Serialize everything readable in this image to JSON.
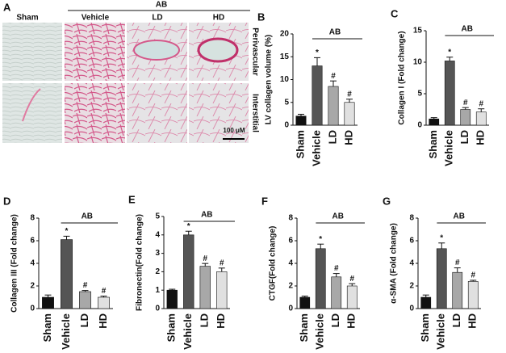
{
  "panel_a": {
    "label": "A",
    "group_label": "AB",
    "columns": [
      "Sham",
      "Vehicle",
      "LD",
      "HD"
    ],
    "rows": [
      "Perivascular",
      "Interstitial"
    ],
    "scale_bar": "100 μM"
  },
  "chart_data": [
    {
      "type": "bar",
      "panel": "B",
      "ylabel": "LV collagen volume (%)",
      "categories": [
        "Sham",
        "Vehicle",
        "LD",
        "HD"
      ],
      "values": [
        2,
        13,
        8.5,
        5
      ],
      "errors": [
        0.4,
        1.8,
        1.2,
        0.7
      ],
      "markers": [
        null,
        "*",
        "#",
        "#"
      ],
      "group_label": "AB",
      "colors": [
        "#111111",
        "#555555",
        "#a8a8a8",
        "#e0e0e0"
      ],
      "ylim": [
        0,
        20
      ],
      "yticks": [
        0,
        5,
        10,
        15,
        20
      ]
    },
    {
      "type": "bar",
      "panel": "C",
      "ylabel": "Collagen I (Fold change)",
      "categories": [
        "Sham",
        "Vehicle",
        "LD",
        "HD"
      ],
      "values": [
        1,
        10.2,
        2.5,
        2.1
      ],
      "errors": [
        0.2,
        0.6,
        0.3,
        0.5
      ],
      "markers": [
        null,
        "*",
        "#",
        "#"
      ],
      "group_label": "AB",
      "colors": [
        "#111111",
        "#555555",
        "#a8a8a8",
        "#e0e0e0"
      ],
      "ylim": [
        0,
        15
      ],
      "yticks": [
        0,
        5,
        10,
        15
      ]
    },
    {
      "type": "bar",
      "panel": "D",
      "ylabel": "Collagen III (Fold change)",
      "categories": [
        "Sham",
        "Vehicle",
        "LD",
        "HD"
      ],
      "values": [
        1,
        6.1,
        1.5,
        1
      ],
      "errors": [
        0.2,
        0.3,
        0.1,
        0.1
      ],
      "markers": [
        null,
        "*",
        "#",
        "#"
      ],
      "group_label": "AB",
      "colors": [
        "#111111",
        "#555555",
        "#a8a8a8",
        "#e0e0e0"
      ],
      "ylim": [
        0,
        8
      ],
      "yticks": [
        0,
        2,
        4,
        6,
        8
      ]
    },
    {
      "type": "bar",
      "panel": "E",
      "ylabel": "Fibronectin(Fold change)",
      "categories": [
        "Sham",
        "Vehicle",
        "LD",
        "HD"
      ],
      "values": [
        1,
        4,
        2.3,
        2
      ],
      "errors": [
        0.05,
        0.2,
        0.15,
        0.2
      ],
      "markers": [
        null,
        "*",
        "#",
        "#"
      ],
      "group_label": "AB",
      "colors": [
        "#111111",
        "#555555",
        "#a8a8a8",
        "#e0e0e0"
      ],
      "ylim": [
        0,
        5
      ],
      "yticks": [
        0,
        1,
        2,
        3,
        4,
        5
      ]
    },
    {
      "type": "bar",
      "panel": "F",
      "ylabel": "CTGF(Fold change)",
      "categories": [
        "Sham",
        "Vehicle",
        "LD",
        "HD"
      ],
      "values": [
        1,
        5.3,
        2.8,
        2
      ],
      "errors": [
        0.1,
        0.4,
        0.3,
        0.2
      ],
      "markers": [
        null,
        "*",
        "#",
        "#"
      ],
      "group_label": "AB",
      "colors": [
        "#111111",
        "#555555",
        "#a8a8a8",
        "#e0e0e0"
      ],
      "ylim": [
        0,
        8
      ],
      "yticks": [
        0,
        2,
        4,
        6,
        8
      ]
    },
    {
      "type": "bar",
      "panel": "G",
      "ylabel": "α-SMA (Fold change)",
      "categories": [
        "Sham",
        "Vehicle",
        "LD",
        "HD"
      ],
      "values": [
        1,
        5.3,
        3.2,
        2.4
      ],
      "errors": [
        0.2,
        0.5,
        0.4,
        0.1
      ],
      "markers": [
        null,
        "*",
        "#",
        "#"
      ],
      "group_label": "AB",
      "colors": [
        "#111111",
        "#555555",
        "#a8a8a8",
        "#e0e0e0"
      ],
      "ylim": [
        0,
        8
      ],
      "yticks": [
        0,
        2,
        4,
        6,
        8
      ]
    }
  ]
}
